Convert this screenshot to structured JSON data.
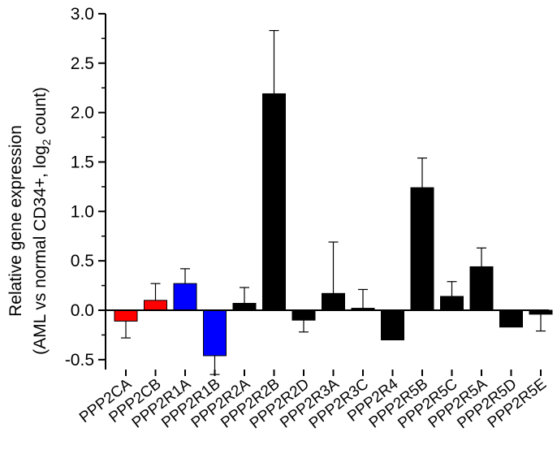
{
  "chart_data": {
    "type": "bar",
    "ylabel_line1": "Relative gene expression",
    "ylabel_line2_prefix": "(AML vs normal CD34+, log",
    "ylabel_line2_sub": "2",
    "ylabel_line2_suffix": " count)",
    "ylim": [
      -0.6,
      3.0
    ],
    "yticks": [
      {
        "value": 3.0,
        "label": "3.0"
      },
      {
        "value": 2.5,
        "label": "2.5"
      },
      {
        "value": 2.0,
        "label": "2.0"
      },
      {
        "value": 1.5,
        "label": "1.5"
      },
      {
        "value": 1.0,
        "label": "1.0"
      },
      {
        "value": 0.5,
        "label": "0.5"
      },
      {
        "value": 0.0,
        "label": "0.0"
      },
      {
        "value": -0.5,
        "label": "-0.5"
      }
    ],
    "categories": [
      "PPP2CA",
      "PPP2CB",
      "PPP2R1A",
      "PPP2R1B",
      "PPP2R2A",
      "PPP2R2B",
      "PPP2R2D",
      "PPP2R3A",
      "PPP2R3C",
      "PPP2R4",
      "PPP2R5B",
      "PPP2R5C",
      "PPP2R5A",
      "PPP2R5D",
      "PPP2R5E"
    ],
    "values": [
      -0.11,
      0.1,
      0.27,
      -0.46,
      0.07,
      2.19,
      -0.1,
      0.17,
      0.02,
      -0.3,
      1.24,
      0.14,
      0.44,
      -0.17,
      -0.04
    ],
    "errors": [
      0.17,
      0.17,
      0.15,
      0.19,
      0.16,
      0.64,
      0.12,
      0.52,
      0.19,
      0.0,
      0.3,
      0.15,
      0.19,
      0.0,
      0.17
    ],
    "colors": [
      "#ff0000",
      "#ff0000",
      "#0000ff",
      "#0000ff",
      "#000000",
      "#000000",
      "#000000",
      "#000000",
      "#000000",
      "#000000",
      "#000000",
      "#000000",
      "#000000",
      "#000000",
      "#000000"
    ]
  }
}
